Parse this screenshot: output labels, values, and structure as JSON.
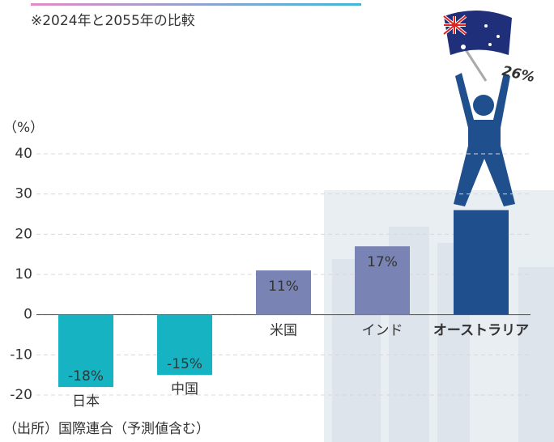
{
  "chart_data": {
    "type": "bar",
    "subtitle": "※2024年と2055年の比較",
    "y_label": "（%）",
    "source": "（出所）国際連合（予測値含む）",
    "categories": [
      "日本",
      "中国",
      "米国",
      "インド",
      "オーストラリア"
    ],
    "values": [
      -18,
      -15,
      11,
      17,
      26
    ],
    "value_labels": [
      "-18%",
      "-15%",
      "11%",
      "17%",
      "26%"
    ],
    "colors": [
      "#16b3c3",
      "#16b3c3",
      "#7a84b4",
      "#7a84b4",
      "#1f4f8c"
    ],
    "ylim": [
      -20,
      40
    ],
    "yticks": [
      -20,
      -10,
      0,
      10,
      20,
      30,
      40
    ],
    "grid": true
  }
}
